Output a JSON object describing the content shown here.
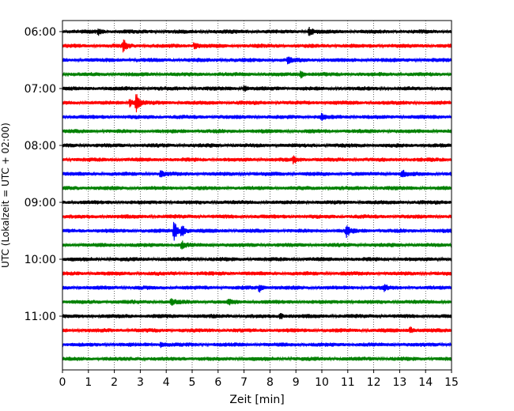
{
  "chart_data": {
    "type": "line",
    "title": "",
    "xlabel": "Zeit  [min]",
    "ylabel": "UTC (Lokalzeit = UTC + 02:00)",
    "xlim": [
      0,
      15
    ],
    "x_ticks": [
      0,
      1,
      2,
      3,
      4,
      5,
      6,
      7,
      8,
      9,
      10,
      11,
      12,
      13,
      14,
      15
    ],
    "y_tick_labels": [
      "06:00",
      "07:00",
      "08:00",
      "09:00",
      "10:00",
      "11:00"
    ],
    "trace_start_time": "06:00",
    "trace_interval_min": 15,
    "grid": "vertical dotted",
    "trace_colors": [
      "#000000",
      "#ff0000",
      "#0000ff",
      "#008000"
    ],
    "traces": [
      {
        "start": "06:00",
        "color": "#000000",
        "events": [
          {
            "x": 9.5,
            "amp": 0.55
          },
          {
            "x": 1.4,
            "amp": 0.35
          }
        ]
      },
      {
        "start": "06:15",
        "color": "#ff0000",
        "events": [
          {
            "x": 2.35,
            "amp": 0.8
          },
          {
            "x": 5.1,
            "amp": 0.5
          }
        ]
      },
      {
        "start": "06:30",
        "color": "#0000ff",
        "events": [
          {
            "x": 8.7,
            "amp": 0.4
          }
        ]
      },
      {
        "start": "06:45",
        "color": "#008000",
        "events": [
          {
            "x": 9.2,
            "amp": 0.45
          }
        ]
      },
      {
        "start": "07:00",
        "color": "#000000",
        "events": [
          {
            "x": 7.0,
            "amp": 0.4
          }
        ]
      },
      {
        "start": "07:15",
        "color": "#ff0000",
        "events": [
          {
            "x": 2.85,
            "amp": 1.2
          },
          {
            "x": 2.6,
            "amp": 0.5
          }
        ]
      },
      {
        "start": "07:30",
        "color": "#0000ff",
        "events": [
          {
            "x": 10.0,
            "amp": 0.35
          }
        ]
      },
      {
        "start": "07:45",
        "color": "#008000",
        "events": []
      },
      {
        "start": "08:00",
        "color": "#000000",
        "events": []
      },
      {
        "start": "08:15",
        "color": "#ff0000",
        "events": [
          {
            "x": 8.9,
            "amp": 0.45
          }
        ]
      },
      {
        "start": "08:30",
        "color": "#0000ff",
        "events": [
          {
            "x": 13.1,
            "amp": 0.45
          },
          {
            "x": 3.8,
            "amp": 0.3
          }
        ]
      },
      {
        "start": "08:45",
        "color": "#008000",
        "events": []
      },
      {
        "start": "09:00",
        "color": "#000000",
        "events": []
      },
      {
        "start": "09:15",
        "color": "#ff0000",
        "events": []
      },
      {
        "start": "09:30",
        "color": "#0000ff",
        "events": [
          {
            "x": 4.3,
            "amp": 1.4
          },
          {
            "x": 4.6,
            "amp": 0.8
          },
          {
            "x": 10.95,
            "amp": 0.8
          }
        ]
      },
      {
        "start": "09:45",
        "color": "#008000",
        "events": [
          {
            "x": 4.6,
            "amp": 0.45
          }
        ]
      },
      {
        "start": "10:00",
        "color": "#000000",
        "events": []
      },
      {
        "start": "10:15",
        "color": "#ff0000",
        "events": []
      },
      {
        "start": "10:30",
        "color": "#0000ff",
        "events": [
          {
            "x": 7.6,
            "amp": 0.45
          },
          {
            "x": 12.4,
            "amp": 0.35
          }
        ]
      },
      {
        "start": "10:45",
        "color": "#008000",
        "events": [
          {
            "x": 4.2,
            "amp": 0.35
          },
          {
            "x": 6.4,
            "amp": 0.3
          }
        ]
      },
      {
        "start": "11:00",
        "color": "#000000",
        "events": [
          {
            "x": 8.4,
            "amp": 0.35
          }
        ]
      },
      {
        "start": "11:15",
        "color": "#ff0000",
        "events": [
          {
            "x": 13.4,
            "amp": 0.45
          }
        ]
      },
      {
        "start": "11:30",
        "color": "#0000ff",
        "events": [
          {
            "x": 3.8,
            "amp": 0.3
          }
        ]
      },
      {
        "start": "11:45",
        "color": "#008000",
        "events": []
      }
    ]
  }
}
